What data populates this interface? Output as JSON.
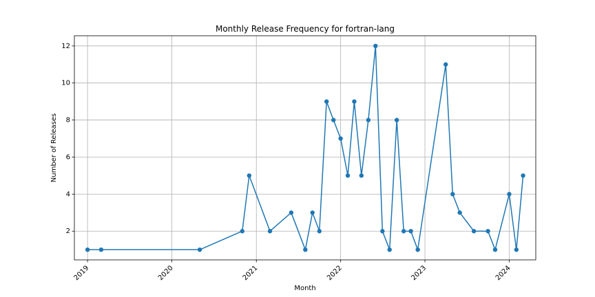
{
  "chart_data": {
    "type": "line",
    "title": "Monthly Release Frequency for fortran-lang",
    "xlabel": "Month",
    "ylabel": "Number of Releases",
    "x_ticks": [
      "2019",
      "2020",
      "2021",
      "2022",
      "2023",
      "2024"
    ],
    "y_ticks": [
      2,
      4,
      6,
      8,
      10,
      12
    ],
    "xlim": [
      "2018-11-05",
      "2024-04-25"
    ],
    "ylim": [
      0.45,
      12.55
    ],
    "grid": true,
    "color": "#1f77b4",
    "series": [
      {
        "x": [
          "2019-01-01",
          "2019-03-01",
          "2020-05-01",
          "2020-11-01",
          "2020-12-01",
          "2021-03-01",
          "2021-06-01",
          "2021-08-01",
          "2021-09-01",
          "2021-10-01",
          "2021-11-01",
          "2021-12-01",
          "2022-01-01",
          "2022-02-01",
          "2022-03-01",
          "2022-04-01",
          "2022-05-01",
          "2022-06-01",
          "2022-07-01",
          "2022-08-01",
          "2022-09-01",
          "2022-10-01",
          "2022-11-01",
          "2022-12-01",
          "2023-04-01",
          "2023-05-01",
          "2023-06-01",
          "2023-08-01",
          "2023-10-01",
          "2023-11-01",
          "2024-01-01",
          "2024-02-01",
          "2024-03-01"
        ],
        "values": [
          1,
          1,
          1,
          2,
          5,
          2,
          3,
          1,
          3,
          2,
          9,
          8,
          7,
          5,
          9,
          5,
          8,
          12,
          2,
          1,
          8,
          2,
          2,
          1,
          11,
          4,
          3,
          2,
          2,
          1,
          4,
          1,
          5
        ]
      }
    ]
  }
}
